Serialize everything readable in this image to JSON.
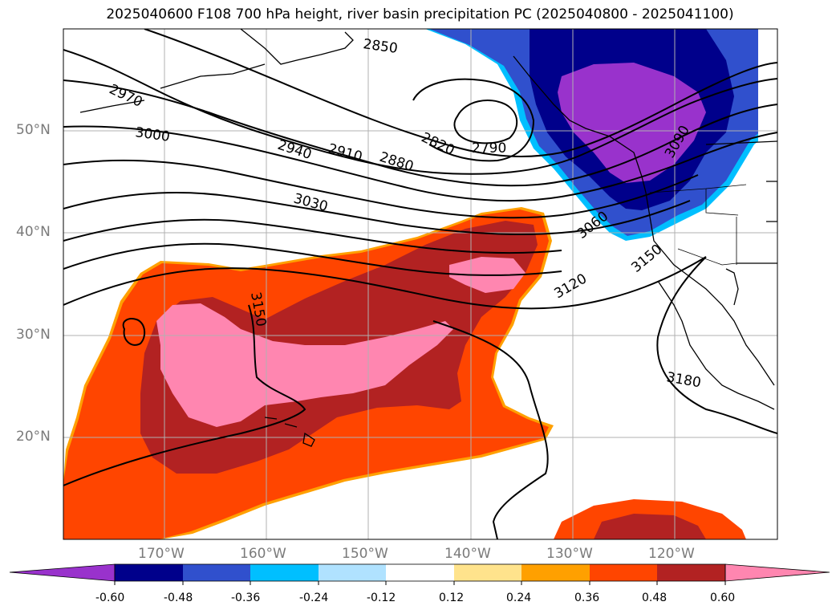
{
  "title": "2025040600 F108 700 hPa height, river basin precipitation PC (2025040800 - 2025041100)",
  "lat_labels": [
    "50°N",
    "40°N",
    "30°N",
    "20°N"
  ],
  "lon_labels": [
    "170°W",
    "160°W",
    "150°W",
    "140°W",
    "130°W",
    "120°W"
  ],
  "contour_labels": [
    "2850",
    "2970",
    "3000",
    "2940",
    "2910",
    "2880",
    "2820",
    "2790",
    "3030",
    "3060",
    "3090",
    "3120",
    "3150",
    "3150",
    "3180"
  ],
  "colorbar": {
    "tick_labels": [
      "-0.60",
      "-0.48",
      "-0.36",
      "-0.24",
      "-0.12",
      "0.12",
      "0.24",
      "0.36",
      "0.48",
      "0.60"
    ],
    "colors": [
      "#9932cc",
      "#00008b",
      "#3050cd",
      "#00bfff",
      "#b0e2ff",
      "#ffffff",
      "#ffe38c",
      "#ffa000",
      "#ff4500",
      "#b22222",
      "#ff86b0"
    ]
  },
  "fill_colors": {
    "dry_strong": "#9932cc",
    "dry_1": "#00008b",
    "dry_2": "#3050cd",
    "dry_3": "#00bfff",
    "wet_1": "#ff4500",
    "wet_2": "#b22222",
    "wet_3": "#ff86b0",
    "wet_edge": "#ffa000"
  }
}
